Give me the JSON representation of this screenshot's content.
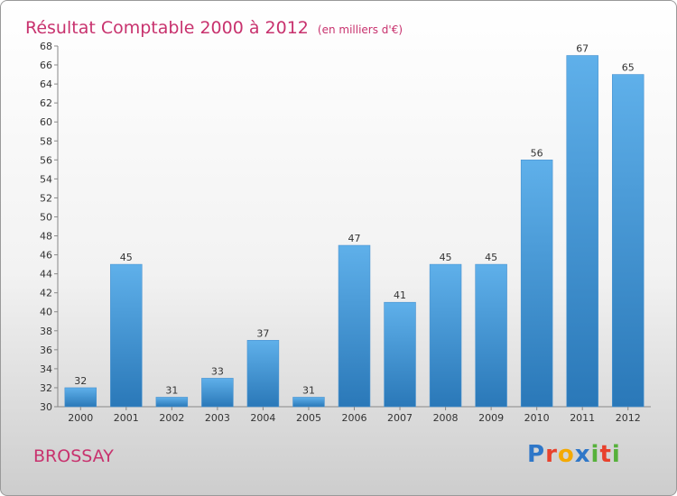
{
  "title": "Résultat Comptable 2000 à 2012",
  "subtitle": "(en milliers d'€)",
  "commune": "BROSSAY",
  "logo": {
    "letters": [
      {
        "char": "P",
        "color": "#2f77c8"
      },
      {
        "char": "r",
        "color": "#e8412c"
      },
      {
        "char": "o",
        "color": "#f4a900"
      },
      {
        "char": "x",
        "color": "#2f77c8"
      },
      {
        "char": "i",
        "color": "#56b13b"
      },
      {
        "char": "t",
        "color": "#e8412c"
      },
      {
        "char": "i",
        "color": "#56b13b"
      }
    ]
  },
  "colors": {
    "bar_top": "#5fb0ea",
    "bar_bottom": "#2a78b8",
    "title": "#c8326e"
  },
  "chart_data": {
    "type": "bar",
    "categories": [
      "2000",
      "2001",
      "2002",
      "2003",
      "2004",
      "2005",
      "2006",
      "2007",
      "2008",
      "2009",
      "2010",
      "2011",
      "2012"
    ],
    "values": [
      32,
      45,
      31,
      33,
      37,
      31,
      47,
      41,
      45,
      45,
      56,
      67,
      65
    ],
    "title": "Résultat Comptable 2000 à 2012",
    "xlabel": "",
    "ylabel": "",
    "ylim": [
      30,
      68
    ],
    "yticks": [
      30,
      32,
      34,
      36,
      38,
      40,
      42,
      44,
      46,
      48,
      50,
      52,
      54,
      56,
      58,
      60,
      62,
      64,
      66,
      68
    ],
    "grid": false,
    "legend": "none"
  }
}
